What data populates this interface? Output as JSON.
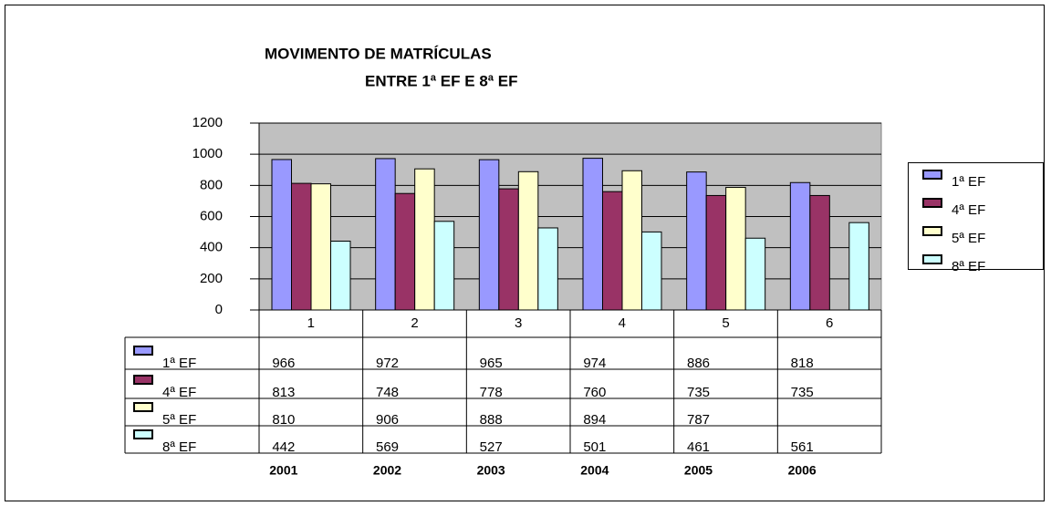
{
  "chart_data": {
    "type": "bar",
    "title_lines": [
      "MOVIMENTO DE MATRÍCULAS",
      "ENTRE 1ª EF E 8ª EF"
    ],
    "categories": [
      "1",
      "2",
      "3",
      "4",
      "5",
      "6"
    ],
    "year_labels": [
      "2001",
      "2002",
      "2003",
      "2004",
      "2005",
      "2006"
    ],
    "series": [
      {
        "name": "1ª EF",
        "color": "#9999ff",
        "values": [
          966,
          972,
          965,
          974,
          886,
          818
        ]
      },
      {
        "name": "4ª EF",
        "color": "#993366",
        "values": [
          813,
          748,
          778,
          760,
          735,
          735
        ]
      },
      {
        "name": "5ª EF",
        "color": "#ffffcc",
        "values": [
          810,
          906,
          888,
          894,
          787,
          null
        ]
      },
      {
        "name": "8ª EF",
        "color": "#ccffff",
        "values": [
          442,
          569,
          527,
          501,
          461,
          561
        ]
      }
    ],
    "ylim": [
      0,
      1200
    ],
    "yticks": [
      0,
      200,
      400,
      600,
      800,
      1000,
      1200
    ],
    "grid": true,
    "legend": "right",
    "data_table": true
  }
}
